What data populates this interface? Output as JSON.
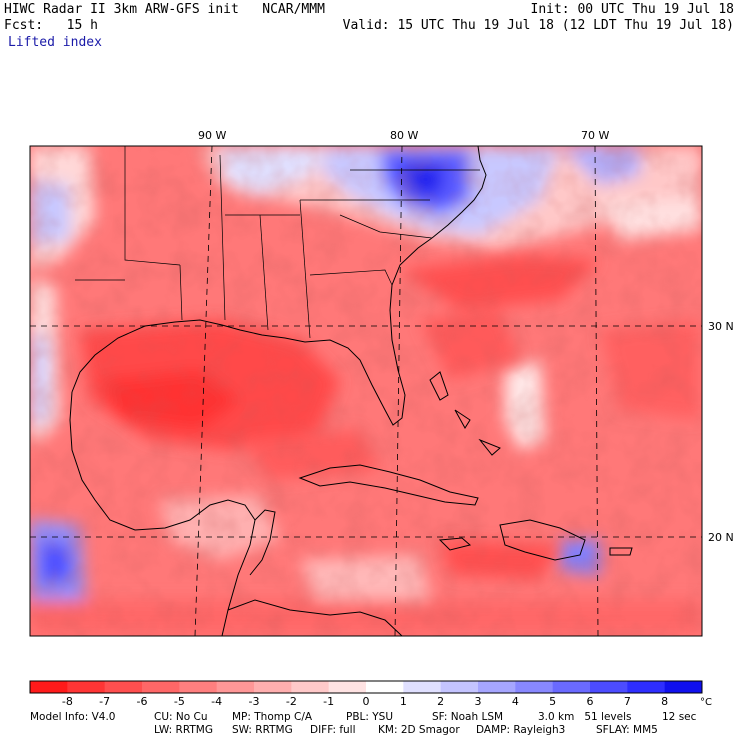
{
  "header": {
    "left_line1": "HIWC Radar II 3km ARW-GFS init   NCAR/MMM",
    "left_line2": "Fcst:   15 h",
    "left_line3": "Lifted index",
    "right_line1": "Init: 00 UTC Thu 19 Jul 18",
    "right_line2": "Valid: 15 UTC Thu 19 Jul 18 (12 LDT Thu 19 Jul 18)"
  },
  "map": {
    "lon_labels": [
      "90 W",
      "80 W",
      "70 W"
    ],
    "lat_labels": [
      "30 N",
      "20 N"
    ]
  },
  "colorbar": {
    "levels": [
      "-8",
      "-7",
      "-6",
      "-5",
      "-4",
      "-3",
      "-2",
      "-1",
      "0",
      "1",
      "2",
      "3",
      "4",
      "5",
      "6",
      "7",
      "8"
    ],
    "unit": "°C",
    "colors": [
      "#ff1a1a",
      "#ff3535",
      "#ff4f4f",
      "#ff6767",
      "#ff7f7f",
      "#ff9797",
      "#ffafaf",
      "#ffc9c9",
      "#ffe3e3",
      "#ffffff",
      "#e0e0ff",
      "#c4c4ff",
      "#a6a6ff",
      "#8888ff",
      "#6a6aff",
      "#4c4cff",
      "#2e2eff",
      "#1010ee"
    ]
  },
  "model_info": {
    "line1": {
      "model": "Model Info: V4.0",
      "cu": "CU: No Cu",
      "mp": "MP: Thomp C/A",
      "pbl": "PBL: YSU",
      "sf": "SF: Noah LSM",
      "res": "3.0 km   51 levels",
      "dt": "12 sec"
    },
    "line2": {
      "lw": "LW: RRTMG",
      "sw": "SW: RRTMG",
      "diff": "DIFF: full",
      "km": "KM: 2D Smagor",
      "damp": "DAMP: Rayleigh3",
      "sflay": "SFLAY: MM5"
    }
  }
}
